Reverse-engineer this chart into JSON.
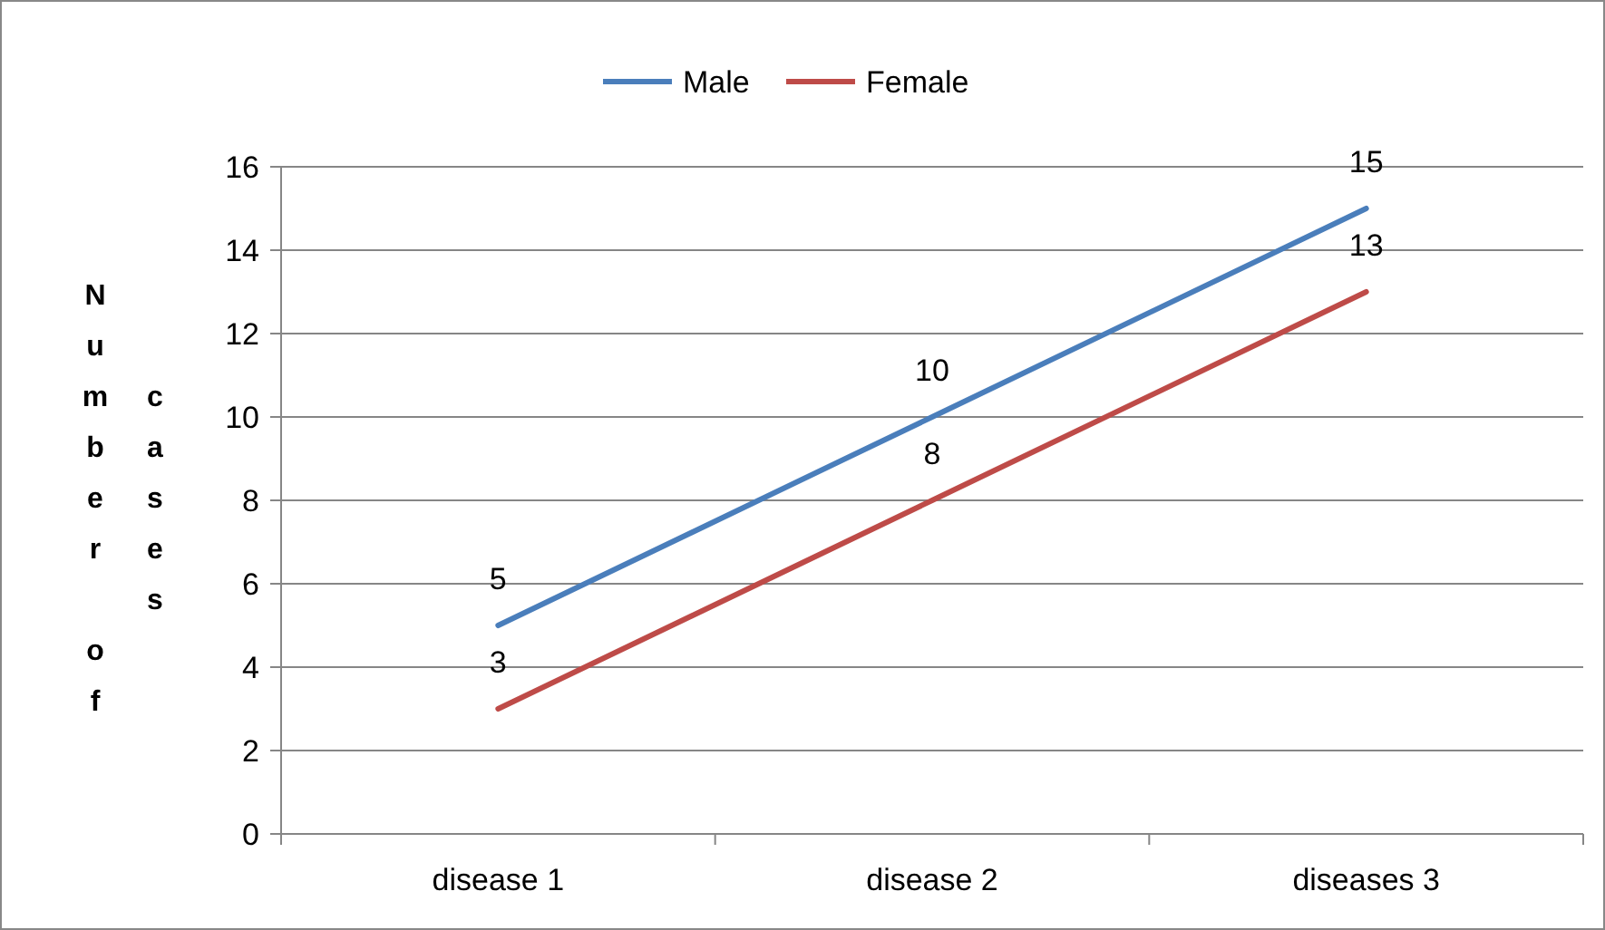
{
  "chart_data": {
    "type": "line",
    "ylabel": "Number of cases",
    "categories": [
      "disease 1",
      "disease 2",
      "diseases 3"
    ],
    "series": [
      {
        "name": "Male",
        "color": "#4a7ebb",
        "values": [
          5,
          10,
          15
        ]
      },
      {
        "name": "Female",
        "color": "#be4b48",
        "values": [
          3,
          8,
          13
        ]
      }
    ],
    "ylim": [
      0,
      16
    ],
    "yticks": [
      0,
      2,
      4,
      6,
      8,
      10,
      12,
      14,
      16
    ],
    "grid": "y",
    "legend": "top",
    "data_labels": true,
    "marker": "none",
    "line_style": "solid"
  }
}
